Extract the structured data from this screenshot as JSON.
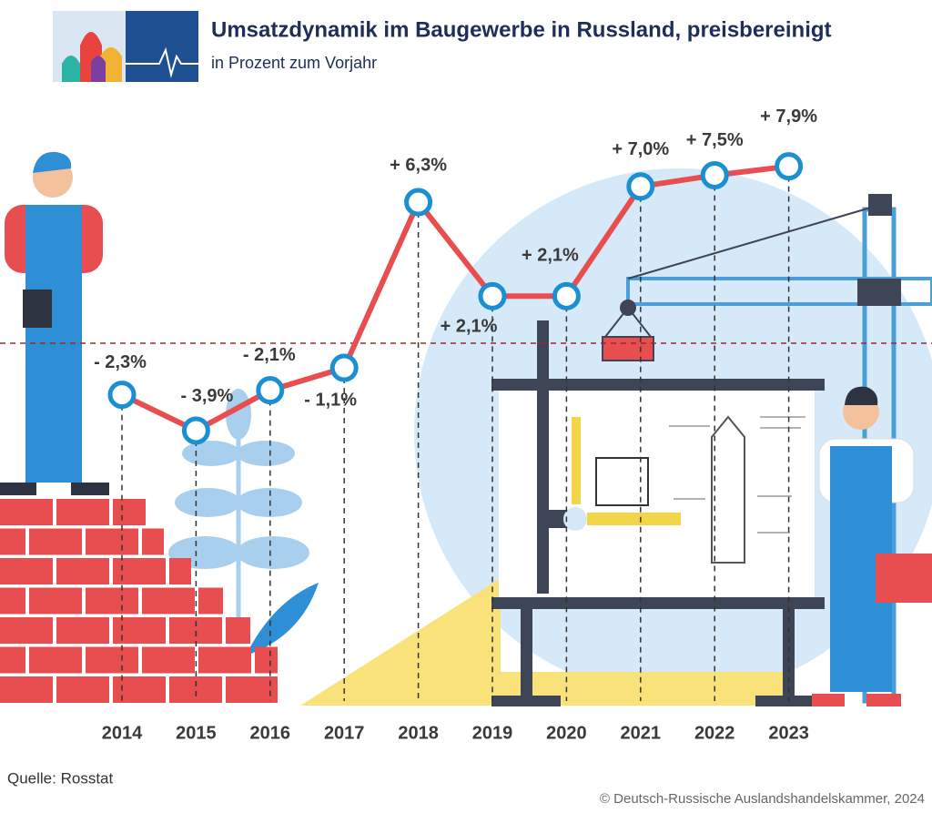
{
  "chart_data": {
    "type": "line",
    "title": "Umsatzdynamik im Baugewerbe in Russland, preisbereinigt",
    "subtitle": "in Prozent zum Vorjahr",
    "categories": [
      "2014",
      "2015",
      "2016",
      "2017",
      "2018",
      "2019",
      "2020",
      "2021",
      "2022",
      "2023"
    ],
    "values": [
      -2.3,
      -3.9,
      -2.1,
      -1.1,
      6.3,
      2.1,
      2.1,
      7.0,
      7.5,
      7.9
    ],
    "value_labels": [
      "- 2,3%",
      "- 3,9%",
      "- 2,1%",
      "- 1,1%",
      "+ 6,3%",
      "+ 2,1%",
      "+ 2,1%",
      "+ 7,0%",
      "+ 7,5%",
      "+ 7,9%"
    ],
    "color": "#e84e4f",
    "marker_color": "#1a8fd1",
    "source": "Quelle: Rosstat",
    "copyright": "© Deutsch-Russische Auslandshandelskammer, 2024"
  }
}
